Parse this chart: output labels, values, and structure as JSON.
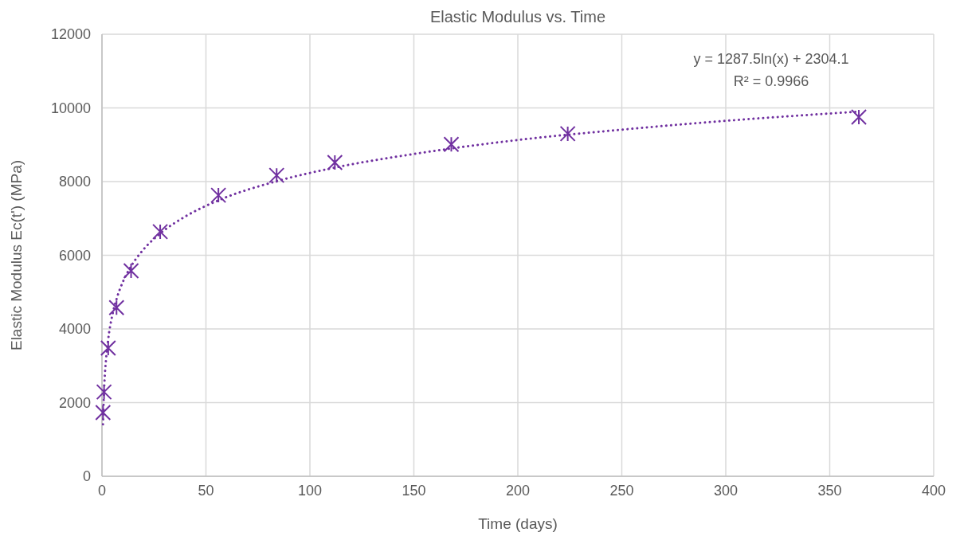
{
  "chart_data": {
    "type": "scatter",
    "title": "Elastic Modulus vs. Time",
    "xlabel": "Time (days)",
    "ylabel": "Elastic Modulus Ec(t') (MPa)",
    "xlim": [
      0,
      400
    ],
    "xticks": [
      0,
      50,
      100,
      150,
      200,
      250,
      300,
      350,
      400
    ],
    "ylim": [
      0,
      12000
    ],
    "yticks": [
      0,
      2000,
      4000,
      6000,
      8000,
      10000,
      12000
    ],
    "grid": true,
    "annotations": [
      "y = 1287.5ln(x) + 2304.1",
      "R² = 0.9966"
    ],
    "series": [
      {
        "color": "#7030a0",
        "marker": "cross",
        "x": [
          0.5,
          1,
          3,
          7,
          14,
          28,
          56,
          84,
          112,
          168,
          224,
          364
        ],
        "values": [
          1730,
          2290,
          3480,
          4580,
          5580,
          6640,
          7630,
          8170,
          8520,
          9010,
          9300,
          9750
        ]
      },
      {
        "type": "line",
        "color": "#7030a0",
        "line_style": "dotted",
        "marker": "none",
        "x": [
          0.5,
          1,
          2,
          3,
          5,
          7,
          10,
          14,
          20,
          28,
          40,
          56,
          84,
          112,
          150,
          200,
          250,
          300,
          364
        ],
        "values": [
          1410,
          2300,
          3200,
          3720,
          4380,
          4810,
          5270,
          5700,
          6160,
          6590,
          7050,
          7490,
          8010,
          8380,
          8750,
          9130,
          9410,
          9650,
          9900
        ]
      }
    ]
  }
}
